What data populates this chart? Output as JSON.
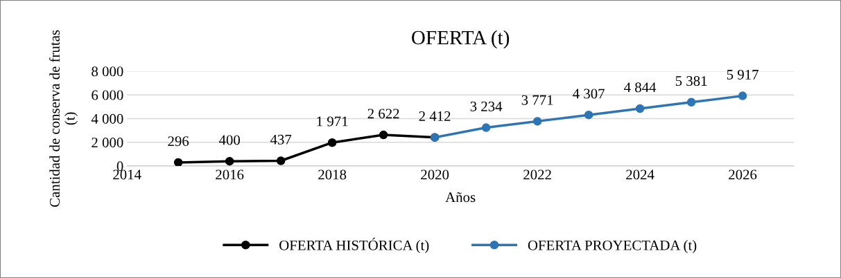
{
  "chart_data": {
    "type": "line",
    "title": "OFERTA (t)",
    "xlabel": "Años",
    "ylabel": "Cantidad de conserva de frutas\n(t)",
    "series": [
      {
        "name": "OFERTA HISTÓRICA (t)",
        "color": "#000000",
        "x": [
          2015,
          2016,
          2017,
          2018,
          2019,
          2020
        ],
        "values": [
          296,
          400,
          437,
          1971,
          2622,
          2412
        ],
        "value_labels": [
          "296",
          "400",
          "437",
          "1 971",
          "2 622",
          "2 412"
        ]
      },
      {
        "name": "OFERTA PROYECTADA (t)",
        "color": "#2e75b6",
        "x": [
          2020,
          2021,
          2022,
          2023,
          2024,
          2025,
          2026
        ],
        "values": [
          2412,
          3234,
          3771,
          4307,
          4844,
          5381,
          5917
        ],
        "value_labels": [
          null,
          "3 234",
          "3 771",
          "4 307",
          "4 844",
          "5 381",
          "5 917"
        ]
      }
    ],
    "xlim": [
      2014,
      2027
    ],
    "xticks": [
      2014,
      2016,
      2018,
      2020,
      2022,
      2024,
      2026
    ],
    "ylim": [
      0,
      8000
    ],
    "yticks": [
      0,
      {
        "value": 2000,
        "label": "2 000"
      },
      {
        "value": 4000,
        "label": "4 000"
      },
      {
        "value": 6000,
        "label": "6 000"
      },
      {
        "value": 8000,
        "label": "8 000"
      }
    ],
    "grid": "y",
    "legend": "bottom",
    "marker": "circle",
    "line_style": "solid"
  }
}
